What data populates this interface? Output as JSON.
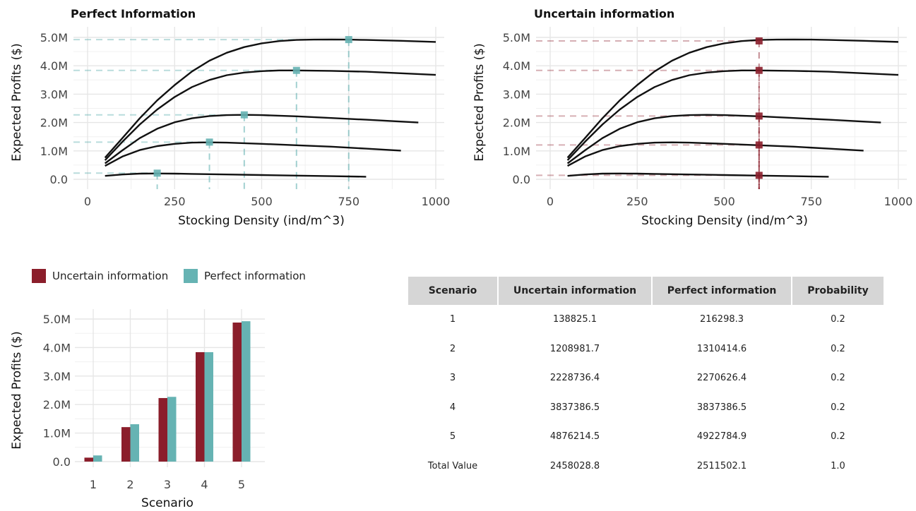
{
  "colors": {
    "uncertain": "#8b1e2b",
    "perfect": "#66b3b3",
    "curve": "#111111",
    "grid": "#e6e6e6"
  },
  "chart_data": [
    {
      "type": "line",
      "title": "Perfect Information",
      "xlabel": "Stocking Density (ind/m^3)",
      "ylabel": "Expected Profits ($)",
      "xlim": [
        0,
        1000
      ],
      "ylim": [
        0,
        5000000
      ],
      "xticks": [
        "0",
        "250",
        "500",
        "750",
        "1000"
      ],
      "yticks": [
        "0.0",
        "1.0M",
        "2.0M",
        "3.0M",
        "4.0M",
        "5.0M"
      ],
      "grid": true,
      "series": [
        {
          "x": [
            50,
            100,
            150,
            200,
            250,
            300,
            400,
            500,
            600,
            700,
            800
          ],
          "y": [
            120000,
            170000,
            200000,
            205000,
            200000,
            190000,
            170000,
            150000,
            130000,
            110000,
            90000
          ]
        },
        {
          "x": [
            50,
            100,
            150,
            200,
            250,
            300,
            350,
            400,
            500,
            600,
            700,
            800,
            900
          ],
          "y": [
            470000,
            800000,
            1030000,
            1170000,
            1250000,
            1290000,
            1300000,
            1290000,
            1250000,
            1200000,
            1150000,
            1080000,
            1010000
          ]
        },
        {
          "x": [
            50,
            100,
            150,
            200,
            250,
            300,
            350,
            400,
            450,
            500,
            600,
            700,
            800,
            950
          ],
          "y": [
            560000,
            1020000,
            1450000,
            1780000,
            2010000,
            2150000,
            2230000,
            2260000,
            2270000,
            2260000,
            2220000,
            2160000,
            2100000,
            2000000
          ]
        },
        {
          "x": [
            50,
            100,
            150,
            200,
            250,
            300,
            350,
            400,
            450,
            500,
            550,
            600,
            700,
            800,
            1000
          ],
          "y": [
            670000,
            1320000,
            1930000,
            2460000,
            2900000,
            3250000,
            3500000,
            3670000,
            3760000,
            3810000,
            3835000,
            3837000,
            3820000,
            3790000,
            3680000
          ]
        },
        {
          "x": [
            50,
            100,
            150,
            200,
            250,
            300,
            350,
            400,
            450,
            500,
            550,
            600,
            650,
            700,
            750,
            800,
            900,
            1000
          ],
          "y": [
            760000,
            1450000,
            2150000,
            2780000,
            3320000,
            3800000,
            4180000,
            4460000,
            4660000,
            4790000,
            4870000,
            4910000,
            4922000,
            4925000,
            4923000,
            4910000,
            4880000,
            4840000
          ]
        }
      ],
      "optima": {
        "x": [
          200,
          350,
          450,
          600,
          750
        ],
        "y": [
          216298.3,
          1310414.6,
          2270626.4,
          3837386.5,
          4922784.9
        ]
      }
    },
    {
      "type": "line",
      "title": "Uncertain information",
      "xlabel": "Stocking Density (ind/m^3)",
      "ylabel": "Expected Profits ($)",
      "xlim": [
        0,
        1000
      ],
      "ylim": [
        0,
        5000000
      ],
      "xticks": [
        "0",
        "250",
        "500",
        "750",
        "1000"
      ],
      "yticks": [
        "0.0",
        "1.0M",
        "2.0M",
        "3.0M",
        "4.0M",
        "5.0M"
      ],
      "grid": true,
      "series": [
        {
          "x": [
            50,
            100,
            150,
            200,
            250,
            300,
            400,
            500,
            600,
            700,
            800
          ],
          "y": [
            120000,
            170000,
            200000,
            205000,
            200000,
            190000,
            170000,
            150000,
            130000,
            110000,
            90000
          ]
        },
        {
          "x": [
            50,
            100,
            150,
            200,
            250,
            300,
            350,
            400,
            500,
            600,
            700,
            800,
            900
          ],
          "y": [
            470000,
            800000,
            1030000,
            1170000,
            1250000,
            1290000,
            1300000,
            1290000,
            1250000,
            1200000,
            1150000,
            1080000,
            1010000
          ]
        },
        {
          "x": [
            50,
            100,
            150,
            200,
            250,
            300,
            350,
            400,
            450,
            500,
            600,
            700,
            800,
            950
          ],
          "y": [
            560000,
            1020000,
            1450000,
            1780000,
            2010000,
            2150000,
            2230000,
            2260000,
            2270000,
            2260000,
            2220000,
            2160000,
            2100000,
            2000000
          ]
        },
        {
          "x": [
            50,
            100,
            150,
            200,
            250,
            300,
            350,
            400,
            450,
            500,
            550,
            600,
            700,
            800,
            1000
          ],
          "y": [
            670000,
            1320000,
            1930000,
            2460000,
            2900000,
            3250000,
            3500000,
            3670000,
            3760000,
            3810000,
            3835000,
            3837000,
            3820000,
            3790000,
            3680000
          ]
        },
        {
          "x": [
            50,
            100,
            150,
            200,
            250,
            300,
            350,
            400,
            450,
            500,
            550,
            600,
            650,
            700,
            750,
            800,
            900,
            1000
          ],
          "y": [
            760000,
            1450000,
            2150000,
            2780000,
            3320000,
            3800000,
            4180000,
            4460000,
            4660000,
            4790000,
            4870000,
            4910000,
            4922000,
            4925000,
            4923000,
            4910000,
            4880000,
            4840000
          ]
        }
      ],
      "optima": {
        "x": [
          600,
          600,
          600,
          600,
          600
        ],
        "y": [
          138825.1,
          1208981.7,
          2228736.4,
          3837386.5,
          4876214.5
        ]
      }
    },
    {
      "type": "bar",
      "title": "",
      "xlabel": "Scenario",
      "ylabel": "Expected Profits ($)",
      "categories": [
        "1",
        "2",
        "3",
        "4",
        "5"
      ],
      "ylim": [
        0,
        5000000
      ],
      "yticks": [
        "0.0",
        "1.0M",
        "2.0M",
        "3.0M",
        "4.0M",
        "5.0M"
      ],
      "legend_position": "top",
      "grid": true,
      "series": [
        {
          "name": "Uncertain information",
          "values": [
            138825.1,
            1208981.7,
            2228736.4,
            3837386.5,
            4876214.5
          ]
        },
        {
          "name": "Perfect information",
          "values": [
            216298.3,
            1310414.6,
            2270626.4,
            3837386.5,
            4922784.9
          ]
        }
      ]
    },
    {
      "type": "table",
      "columns": [
        "Scenario",
        "Uncertain information",
        "Perfect information",
        "Probability"
      ],
      "rows": [
        [
          "1",
          "138825.1",
          "216298.3",
          "0.2"
        ],
        [
          "2",
          "1208981.7",
          "1310414.6",
          "0.2"
        ],
        [
          "3",
          "2228736.4",
          "2270626.4",
          "0.2"
        ],
        [
          "4",
          "3837386.5",
          "3837386.5",
          "0.2"
        ],
        [
          "5",
          "4876214.5",
          "4922784.9",
          "0.2"
        ],
        [
          "Total Value",
          "2458028.8",
          "2511502.1",
          "1.0"
        ]
      ]
    }
  ]
}
